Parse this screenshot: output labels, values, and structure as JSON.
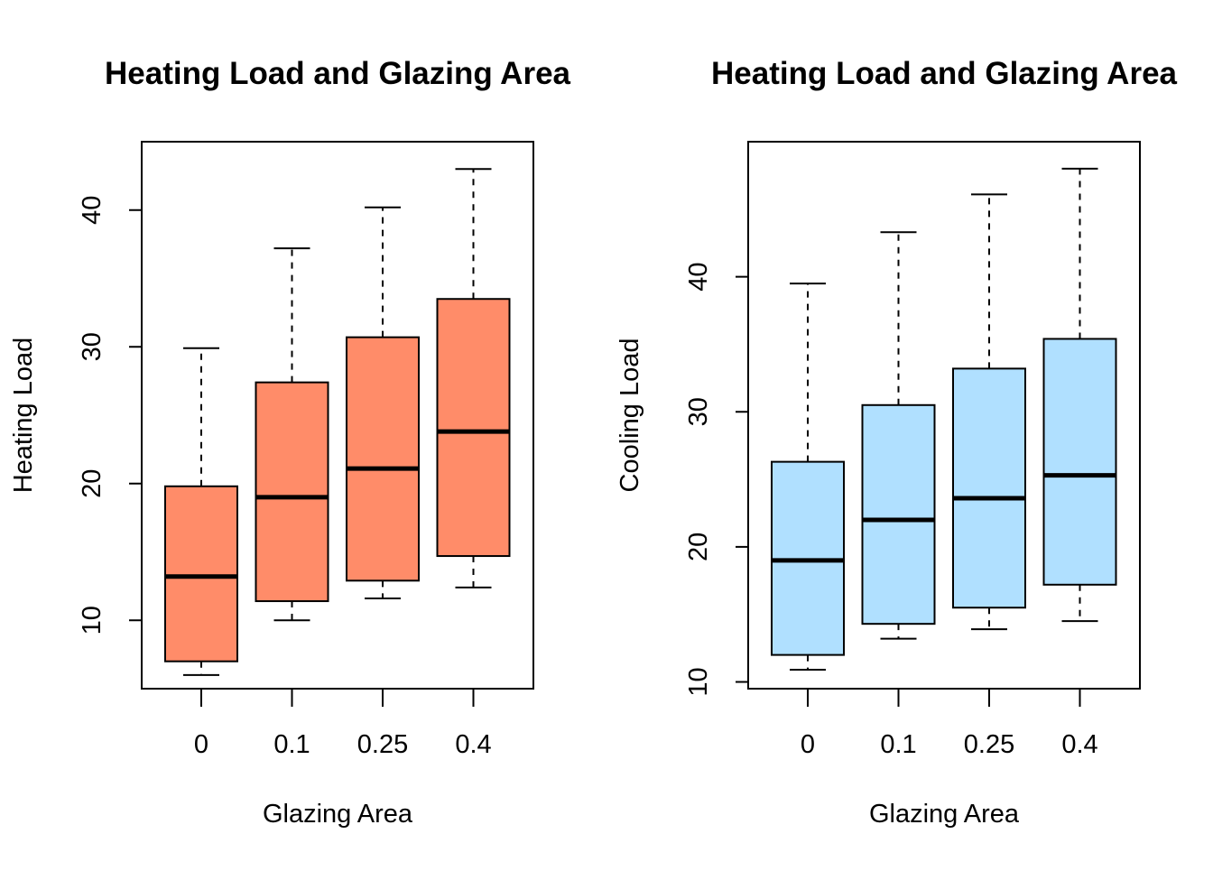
{
  "chart_data": [
    {
      "type": "box",
      "title": "Heating Load and Glazing Area",
      "xlabel": "Glazing Area",
      "ylabel": "Heating Load",
      "categories": [
        "0",
        "0.1",
        "0.25",
        "0.4"
      ],
      "ylim": [
        5,
        45
      ],
      "yticks": [
        10,
        20,
        30,
        40
      ],
      "fill": "#ff8c69",
      "boxes": [
        {
          "min": 6.0,
          "q1": 7.0,
          "median": 13.2,
          "q3": 19.8,
          "max": 29.9
        },
        {
          "min": 10.0,
          "q1": 11.4,
          "median": 19.0,
          "q3": 27.4,
          "max": 37.2
        },
        {
          "min": 11.6,
          "q1": 12.9,
          "median": 21.1,
          "q3": 30.7,
          "max": 40.2
        },
        {
          "min": 12.4,
          "q1": 14.7,
          "median": 23.8,
          "q3": 33.5,
          "max": 43.0
        }
      ]
    },
    {
      "type": "box",
      "title": "Heating Load and Glazing Area",
      "xlabel": "Glazing Area",
      "ylabel": "Cooling Load",
      "categories": [
        "0",
        "0.1",
        "0.25",
        "0.4"
      ],
      "ylim": [
        9.5,
        50
      ],
      "yticks": [
        10,
        20,
        30,
        40
      ],
      "fill": "#b0e0ff",
      "boxes": [
        {
          "min": 10.9,
          "q1": 12.0,
          "median": 19.0,
          "q3": 26.3,
          "max": 39.5
        },
        {
          "min": 13.2,
          "q1": 14.3,
          "median": 22.0,
          "q3": 30.5,
          "max": 43.3
        },
        {
          "min": 13.9,
          "q1": 15.5,
          "median": 23.6,
          "q3": 33.2,
          "max": 46.1
        },
        {
          "min": 14.5,
          "q1": 17.2,
          "median": 25.3,
          "q3": 35.4,
          "max": 48.0
        }
      ]
    }
  ]
}
